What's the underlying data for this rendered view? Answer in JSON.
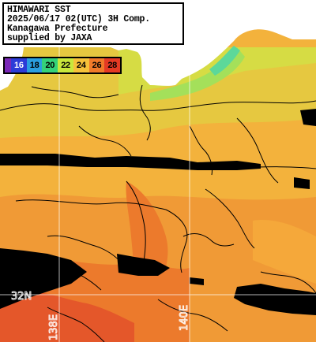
{
  "header": {
    "line1": "HIMAWARI SST",
    "line2": "2025/06/17 02(UTC) 3H Comp.",
    "line3": "Kanagawa Prefecture",
    "line4": "supplied by JAXA"
  },
  "legend": {
    "items": [
      {
        "label": "16",
        "color": "#2c3cd8"
      },
      {
        "label": "18",
        "color": "#2a9ee0"
      },
      {
        "label": "20",
        "color": "#34d27a"
      },
      {
        "label": "22",
        "color": "#c8e83c"
      },
      {
        "label": "24",
        "color": "#f6c23a"
      },
      {
        "label": "26",
        "color": "#f07a2a"
      },
      {
        "label": "28",
        "color": "#e43a24"
      }
    ],
    "lead_color": "#7a28b8"
  },
  "grid": {
    "lat_label": "32N",
    "lon_labels": [
      "138E",
      "140E"
    ]
  },
  "colors": {
    "land": "#ffffff",
    "cloud": "#000000",
    "warm": "#f08c34",
    "mid": "#f6ba40",
    "cool": "#d6dc44",
    "cold": "#9ee05a",
    "coldest": "#5cd89a",
    "hot": "#e8642a"
  }
}
